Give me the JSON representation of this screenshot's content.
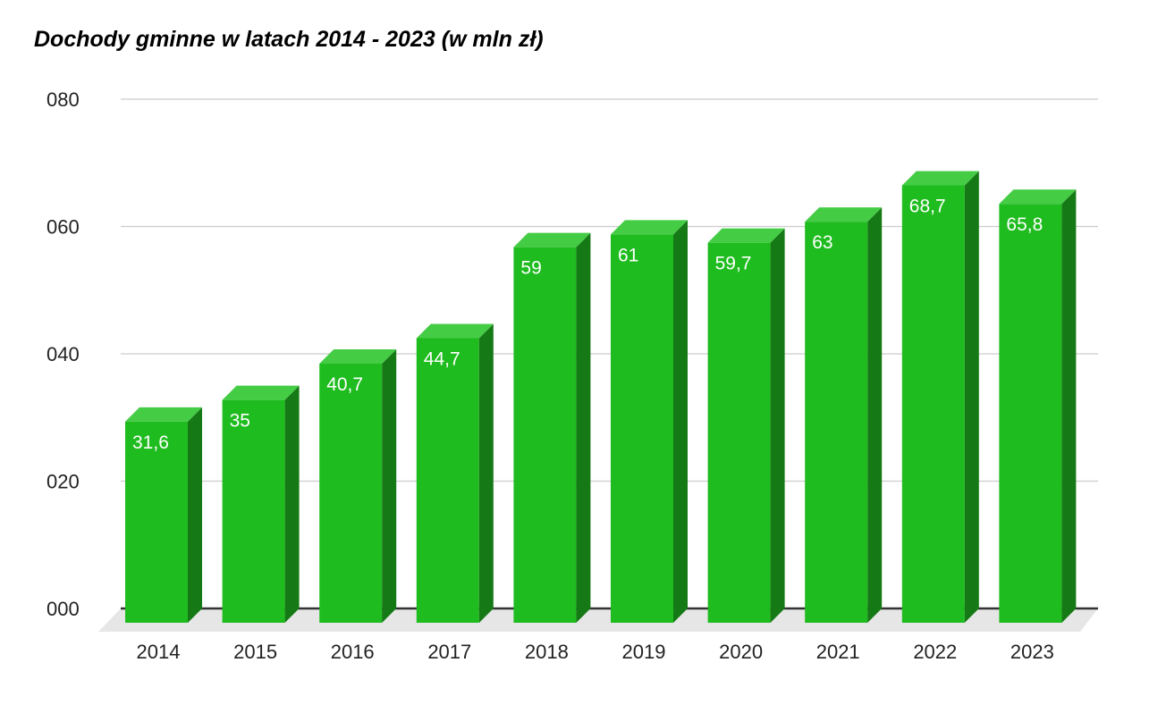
{
  "chart_data": {
    "type": "bar",
    "title": "Dochody gminne w latach 2014 - 2023 (w mln zł)",
    "xlabel": "",
    "ylabel": "",
    "categories": [
      "2014",
      "2015",
      "2016",
      "2017",
      "2018",
      "2019",
      "2020",
      "2021",
      "2022",
      "2023"
    ],
    "series": [
      {
        "values": [
          31.6,
          35,
          40.7,
          44.7,
          59,
          61,
          59.7,
          63,
          68.7,
          65.8
        ],
        "data_labels": [
          "31,6",
          "35",
          "40,7",
          "44,7",
          "59",
          "61",
          "59,7",
          "63",
          "68,7",
          "65,8"
        ]
      }
    ],
    "ylim": [
      0,
      80
    ],
    "y_ticks": [
      0,
      20,
      40,
      60,
      80
    ],
    "y_tick_labels": [
      "000",
      "020",
      "040",
      "060",
      "080"
    ],
    "grid": true,
    "legend": "none",
    "style": "3d",
    "colors": {
      "bar_front": "#1fbc1f",
      "bar_side": "#157a15",
      "bar_top": "#45cc45",
      "floor": "#e6e6e6",
      "gridline": "#cccccc",
      "baseline": "#333333"
    }
  }
}
